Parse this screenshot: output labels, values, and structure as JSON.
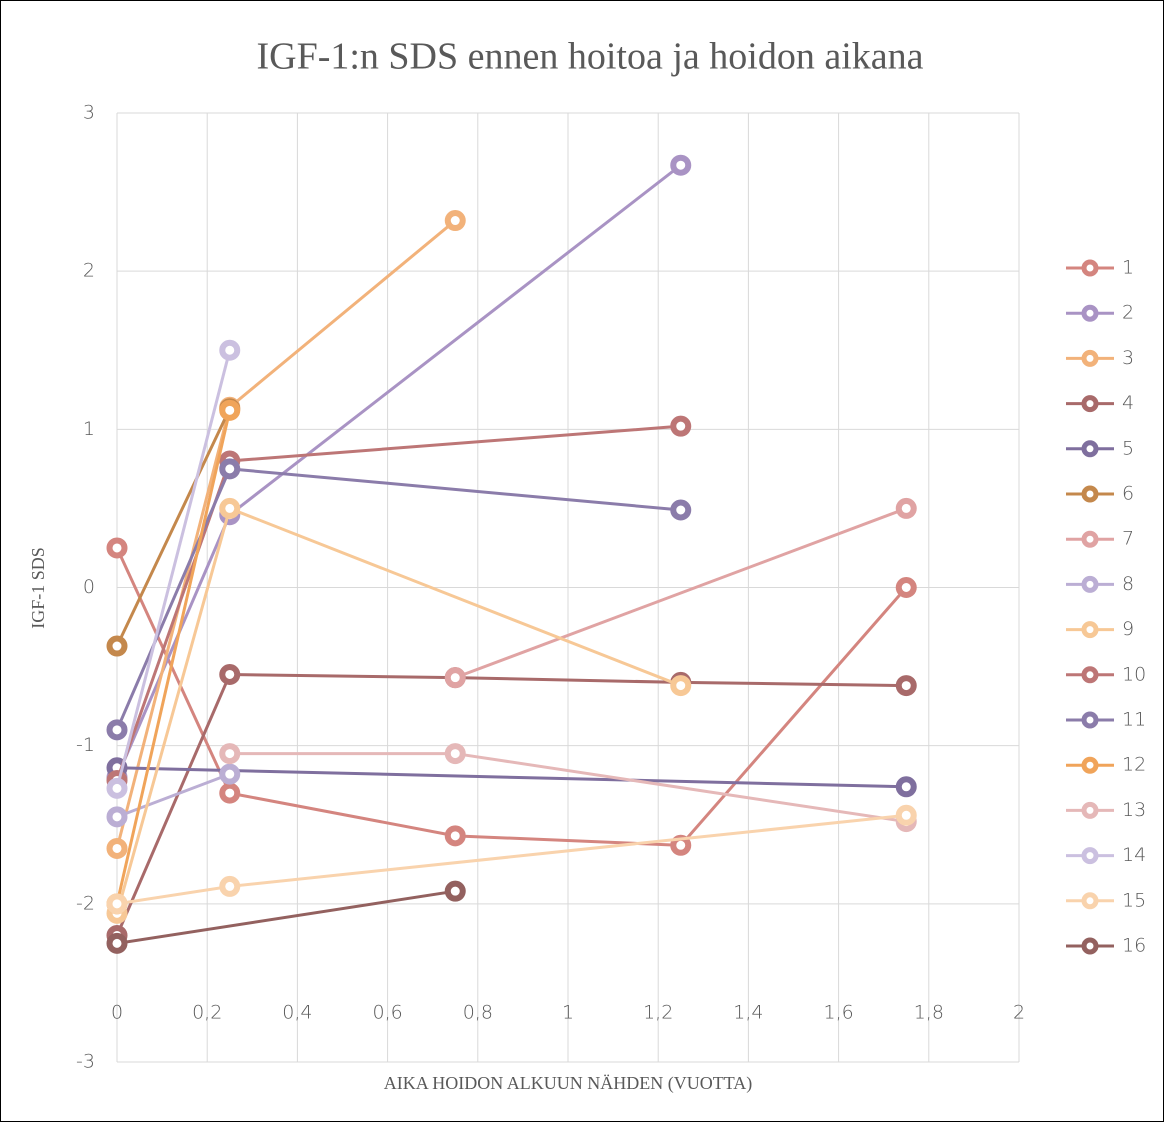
{
  "chart_data": {
    "type": "line",
    "title": "IGF-1:n SDS ennen hoitoa ja hoidon aikana",
    "xlabel": "AIKA HOIDON ALKUUN NÄHDEN (VUOTTA)",
    "ylabel": "IGF-1 SDS",
    "xlim": [
      0,
      2
    ],
    "ylim": [
      -3,
      3
    ],
    "xticks": [
      0,
      {
        "value": 0.2,
        "label": "0,2"
      },
      {
        "value": 0.4,
        "label": "0,4"
      },
      {
        "value": 0.6,
        "label": "0,6"
      },
      {
        "value": 0.8,
        "label": "0,8"
      },
      1,
      {
        "value": 1.2,
        "label": "1,2"
      },
      {
        "value": 1.4,
        "label": "1,4"
      },
      {
        "value": 1.6,
        "label": "1,6"
      },
      {
        "value": 1.8,
        "label": "1,8"
      },
      2
    ],
    "yticks": [
      -3,
      -2,
      -1,
      0,
      1,
      2,
      3
    ],
    "grid": true,
    "legend": "right",
    "series": [
      {
        "name": "1",
        "color": "#d4857f",
        "x": [
          0,
          0.25,
          0.75,
          1.25,
          1.75
        ],
        "values": [
          0.25,
          -1.3,
          -1.57,
          -1.63,
          0
        ]
      },
      {
        "name": "2",
        "color": "#a993c4",
        "x": [
          0,
          0.25,
          1.25
        ],
        "values": [
          -1.2,
          0.46,
          2.67
        ]
      },
      {
        "name": "3",
        "color": "#f2b27a",
        "x": [
          0,
          0.25,
          0.75
        ],
        "values": [
          -1.65,
          1.14,
          2.32
        ]
      },
      {
        "name": "4",
        "color": "#a86a6a",
        "x": [
          0,
          0.25,
          0.75,
          1.25,
          1.75
        ],
        "values": [
          -2.2,
          -0.55,
          -0.57,
          -0.6,
          -0.62
        ]
      },
      {
        "name": "5",
        "color": "#7f6f9e",
        "x": [
          0,
          1.75
        ],
        "values": [
          -1.14,
          -1.26
        ]
      },
      {
        "name": "6",
        "color": "#c4884c",
        "x": [
          0,
          0.25
        ],
        "values": [
          -0.37,
          1.13
        ]
      },
      {
        "name": "7",
        "color": "#e0a3a3",
        "x": [
          0.75,
          1.75
        ],
        "values": [
          -0.57,
          0.5
        ]
      },
      {
        "name": "8",
        "color": "#bbaed4",
        "x": [
          0,
          0.25
        ],
        "values": [
          -1.45,
          -1.18
        ]
      },
      {
        "name": "9",
        "color": "#f7c896",
        "x": [
          0,
          0.25,
          1.25
        ],
        "values": [
          -2.06,
          0.5,
          -0.62
        ]
      },
      {
        "name": "10",
        "color": "#bd7676",
        "x": [
          0,
          0.25,
          1.25
        ],
        "values": [
          -1.22,
          0.8,
          1.02
        ]
      },
      {
        "name": "11",
        "color": "#8b7caa",
        "x": [
          0,
          0.25,
          1.25
        ],
        "values": [
          -0.9,
          0.75,
          0.49
        ]
      },
      {
        "name": "12",
        "color": "#f0a45a",
        "x": [
          0,
          0.25
        ],
        "values": [
          -2.0,
          1.12
        ]
      },
      {
        "name": "13",
        "color": "#e5b8b8",
        "x": [
          0.25,
          0.75,
          1.75
        ],
        "values": [
          -1.05,
          -1.05,
          -1.48
        ]
      },
      {
        "name": "14",
        "color": "#cbc0e0",
        "x": [
          0,
          0.25
        ],
        "values": [
          -1.27,
          1.5
        ]
      },
      {
        "name": "15",
        "color": "#f9d3ad",
        "x": [
          0,
          0.25,
          1.75
        ],
        "values": [
          -2.0,
          -1.89,
          -1.44
        ]
      },
      {
        "name": "16",
        "color": "#93615f",
        "x": [
          0,
          0.75
        ],
        "values": [
          -2.25,
          -1.92
        ]
      }
    ]
  }
}
